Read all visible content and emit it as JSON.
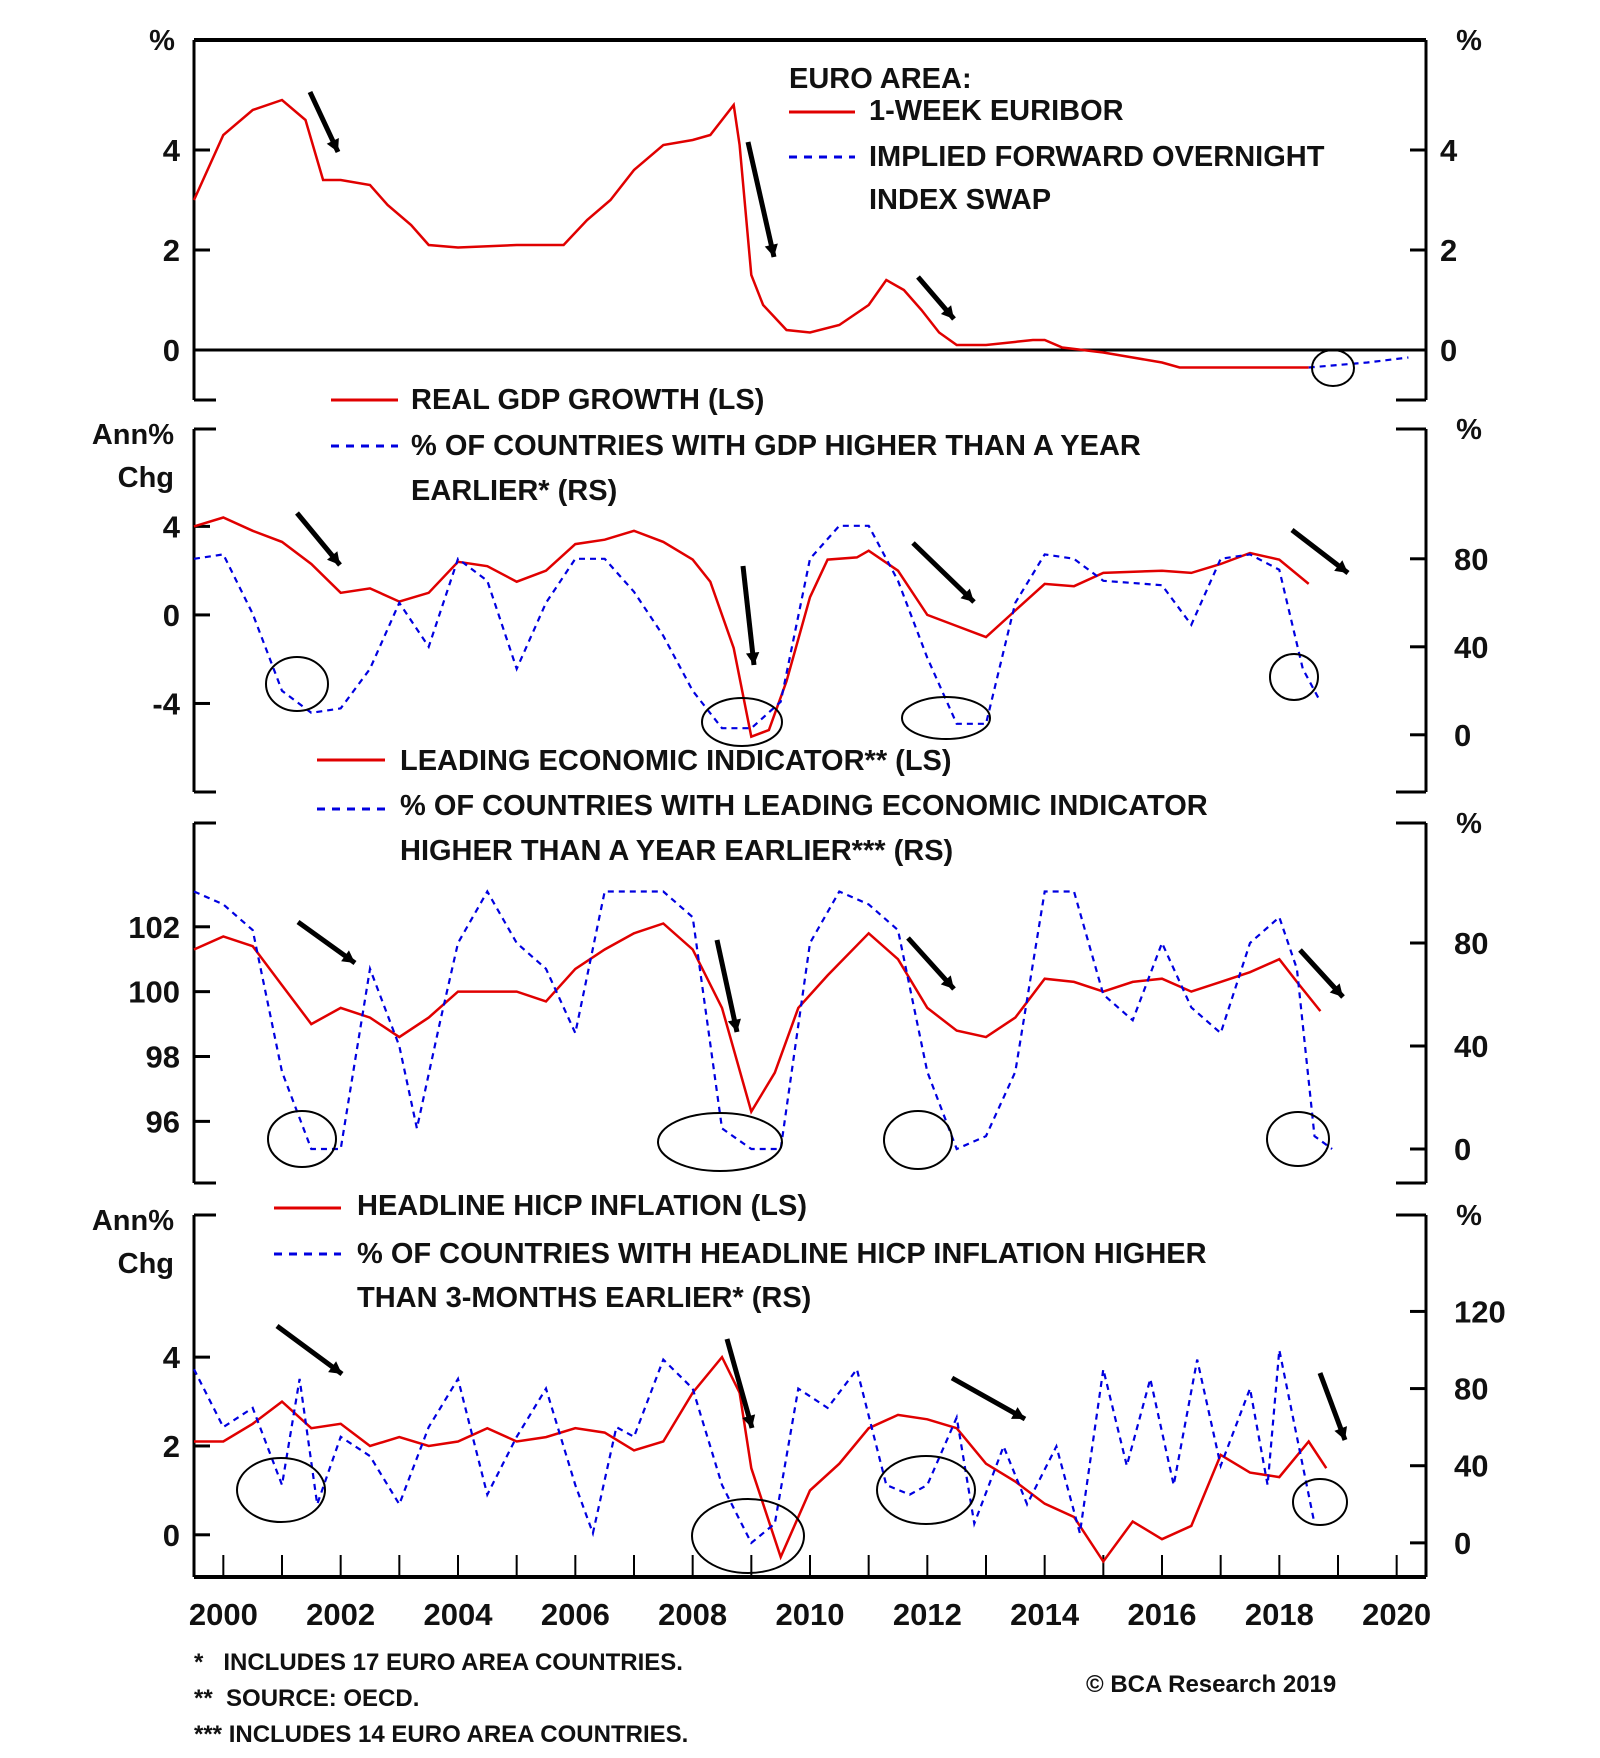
{
  "chart_data": [
    {
      "type": "line",
      "panel": "euribor",
      "legend_title": "EURO AREA:",
      "left_unit": "%",
      "right_unit": "%",
      "ylim": [
        -1,
        6.2
      ],
      "yticks": [
        0,
        2,
        4
      ],
      "grid": false,
      "legend_placement": "top-right",
      "series": [
        {
          "name": "1-WEEK EURIBOR",
          "color": "#e00000",
          "style": "solid",
          "axis": "left",
          "x": [
            1999.5,
            2000.0,
            2000.5,
            2001.0,
            2001.4,
            2001.7,
            2002.0,
            2002.5,
            2002.8,
            2003.2,
            2003.5,
            2004.0,
            2005.0,
            2005.8,
            2006.2,
            2006.6,
            2007.0,
            2007.5,
            2008.0,
            2008.3,
            2008.7,
            2008.8,
            2009.0,
            2009.2,
            2009.6,
            2010.0,
            2010.5,
            2011.0,
            2011.3,
            2011.6,
            2011.9,
            2012.2,
            2012.5,
            2013.0,
            2013.8,
            2014.0,
            2014.3,
            2015.0,
            2015.5,
            2016.0,
            2016.3,
            2018.5
          ],
          "y": [
            3.0,
            4.3,
            4.8,
            5.0,
            4.6,
            3.4,
            3.4,
            3.3,
            2.9,
            2.5,
            2.1,
            2.05,
            2.1,
            2.1,
            2.6,
            3.0,
            3.6,
            4.1,
            4.2,
            4.3,
            4.9,
            4.1,
            1.5,
            0.9,
            0.4,
            0.35,
            0.5,
            0.9,
            1.4,
            1.2,
            0.8,
            0.35,
            0.1,
            0.1,
            0.2,
            0.2,
            0.05,
            -0.05,
            -0.15,
            -0.25,
            -0.35,
            -0.35
          ]
        },
        {
          "name": "IMPLIED FORWARD OVERNIGHT INDEX SWAP",
          "name_lines": [
            "IMPLIED FORWARD OVERNIGHT",
            "INDEX SWAP"
          ],
          "color": "#0000e0",
          "style": "dashed",
          "axis": "left",
          "x": [
            2018.5,
            2019.0,
            2019.5,
            2020.2
          ],
          "y": [
            -0.35,
            -0.3,
            -0.25,
            -0.15
          ]
        }
      ]
    },
    {
      "type": "line",
      "panel": "gdp",
      "left_unit_lines": [
        "Ann%",
        "Chg"
      ],
      "right_unit": "%",
      "ylim": [
        -8,
        8.4
      ],
      "yticks": [
        -4,
        0,
        4
      ],
      "ylim_right": [
        -26,
        139
      ],
      "yticks_right": [
        0,
        40,
        80
      ],
      "series": [
        {
          "name": "REAL GDP GROWTH (LS)",
          "color": "#e00000",
          "style": "solid",
          "axis": "left",
          "x": [
            1999.5,
            2000,
            2000.5,
            2001,
            2001.5,
            2002,
            2002.5,
            2003,
            2003.5,
            2004,
            2004.5,
            2005,
            2005.5,
            2006,
            2006.5,
            2007,
            2007.5,
            2008,
            2008.3,
            2008.7,
            2009,
            2009.3,
            2009.6,
            2010,
            2010.3,
            2010.8,
            2011,
            2011.5,
            2012,
            2012.5,
            2013,
            2013.5,
            2014,
            2014.5,
            2015,
            2016,
            2016.5,
            2017,
            2017.5,
            2018,
            2018.5
          ],
          "y": [
            4.0,
            4.4,
            3.8,
            3.3,
            2.3,
            1.0,
            1.2,
            0.6,
            1.0,
            2.4,
            2.2,
            1.5,
            2.0,
            3.2,
            3.4,
            3.8,
            3.3,
            2.5,
            1.5,
            -1.5,
            -5.5,
            -5.2,
            -3.0,
            0.8,
            2.5,
            2.6,
            2.9,
            2.0,
            0.0,
            -0.5,
            -1.0,
            0.2,
            1.4,
            1.3,
            1.9,
            2.0,
            1.9,
            2.3,
            2.8,
            2.5,
            1.4
          ]
        },
        {
          "name": "% OF COUNTRIES WITH GDP HIGHER THAN A YEAR EARLIER* (RS)",
          "name_lines": [
            "% OF COUNTRIES WITH GDP HIGHER THAN A YEAR",
            "EARLIER* (RS)"
          ],
          "color": "#0000e0",
          "style": "dashed",
          "axis": "right",
          "x": [
            1999.5,
            2000,
            2000.5,
            2001,
            2001.5,
            2002,
            2002.5,
            2003,
            2003.5,
            2004,
            2004.5,
            2005,
            2005.5,
            2006,
            2006.5,
            2007,
            2007.5,
            2008,
            2008.5,
            2009,
            2009.5,
            2010,
            2010.5,
            2011,
            2011.5,
            2012,
            2012.5,
            2013,
            2013.5,
            2014,
            2014.5,
            2015,
            2016,
            2016.5,
            2017,
            2017.5,
            2018,
            2018.4,
            2018.7
          ],
          "y": [
            80,
            82,
            55,
            20,
            10,
            12,
            30,
            60,
            40,
            80,
            70,
            30,
            60,
            80,
            80,
            65,
            45,
            20,
            3,
            3,
            15,
            80,
            95,
            95,
            70,
            35,
            5,
            5,
            60,
            82,
            80,
            70,
            68,
            50,
            80,
            82,
            75,
            30,
            15
          ]
        }
      ]
    },
    {
      "type": "line",
      "panel": "lei",
      "right_unit": "%",
      "ylim": [
        94.1,
        105.2
      ],
      "yticks": [
        96,
        98,
        100,
        102
      ],
      "ylim_right": [
        -13.2,
        126.6
      ],
      "yticks_right": [
        0,
        40,
        80
      ],
      "series": [
        {
          "name": "LEADING ECONOMIC INDICATOR** (LS)",
          "color": "#e00000",
          "style": "solid",
          "axis": "left",
          "x": [
            1999.5,
            2000,
            2000.5,
            2001,
            2001.5,
            2002,
            2002.5,
            2003,
            2003.5,
            2004,
            2005,
            2005.5,
            2006,
            2006.5,
            2007,
            2007.5,
            2008,
            2008.5,
            2009,
            2009.4,
            2009.8,
            2010.3,
            2011,
            2011.5,
            2012,
            2012.5,
            2013,
            2013.5,
            2014,
            2014.5,
            2015,
            2015.5,
            2016,
            2016.5,
            2017,
            2017.5,
            2018,
            2018.3,
            2018.7
          ],
          "y": [
            101.3,
            101.7,
            101.4,
            100.2,
            99.0,
            99.5,
            99.2,
            98.6,
            99.2,
            100.0,
            100.0,
            99.7,
            100.7,
            101.3,
            101.8,
            102.1,
            101.3,
            99.5,
            96.3,
            97.5,
            99.5,
            100.5,
            101.8,
            101.0,
            99.5,
            98.8,
            98.6,
            99.2,
            100.4,
            100.3,
            100.0,
            100.3,
            100.4,
            100.0,
            100.3,
            100.6,
            101.0,
            100.3,
            99.4
          ]
        },
        {
          "name": "% OF COUNTRIES WITH LEADING ECONOMIC INDICATOR HIGHER THAN A YEAR EARLIER*** (RS)",
          "name_lines": [
            "% OF COUNTRIES WITH LEADING ECONOMIC INDICATOR",
            "HIGHER THAN A YEAR EARLIER*** (RS)"
          ],
          "color": "#0000e0",
          "style": "dashed",
          "axis": "right",
          "x": [
            1999.5,
            2000,
            2000.5,
            2001,
            2001.5,
            2002,
            2002.5,
            2003,
            2003.3,
            2003.7,
            2004,
            2004.5,
            2005,
            2005.5,
            2006,
            2006.5,
            2007,
            2007.5,
            2008,
            2008.5,
            2009,
            2009.5,
            2010,
            2010.5,
            2011,
            2011.5,
            2012,
            2012.5,
            2013,
            2013.5,
            2014,
            2014.5,
            2015,
            2015.5,
            2016,
            2016.5,
            2017,
            2017.5,
            2018,
            2018.3,
            2018.6,
            2018.9
          ],
          "y": [
            100,
            95,
            85,
            30,
            0,
            0,
            70,
            40,
            8,
            50,
            80,
            100,
            80,
            70,
            45,
            100,
            100,
            100,
            90,
            8,
            0,
            0,
            80,
            100,
            95,
            85,
            30,
            0,
            5,
            30,
            100,
            100,
            60,
            50,
            80,
            55,
            45,
            80,
            90,
            70,
            5,
            0
          ]
        }
      ]
    },
    {
      "type": "line",
      "panel": "hicp",
      "left_unit_lines": [
        "Ann%",
        "Chg"
      ],
      "right_unit": "%",
      "ylim": [
        -0.95,
        7.2
      ],
      "yticks": [
        0,
        2,
        4
      ],
      "ylim_right": [
        -17.7,
        170
      ],
      "yticks_right": [
        0,
        40,
        80,
        120
      ],
      "xlim": [
        1999.5,
        2020.5
      ],
      "xticks": [
        2000,
        2002,
        2004,
        2006,
        2008,
        2010,
        2012,
        2014,
        2016,
        2018,
        2020
      ],
      "series": [
        {
          "name": "HEADLINE HICP INFLATION (LS)",
          "color": "#e00000",
          "style": "solid",
          "axis": "left",
          "x": [
            1999.5,
            2000,
            2000.5,
            2001,
            2001.5,
            2002,
            2002.5,
            2003,
            2003.5,
            2004,
            2004.5,
            2005,
            2005.5,
            2006,
            2006.5,
            2007,
            2007.5,
            2008,
            2008.5,
            2008.8,
            2009,
            2009.5,
            2010,
            2010.5,
            2011,
            2011.5,
            2012,
            2012.5,
            2013,
            2013.5,
            2014,
            2014.5,
            2015,
            2015.5,
            2016,
            2016.5,
            2017,
            2017.5,
            2018,
            2018.5,
            2018.8
          ],
          "y": [
            2.1,
            2.1,
            2.5,
            3.0,
            2.4,
            2.5,
            2.0,
            2.2,
            2.0,
            2.1,
            2.4,
            2.1,
            2.2,
            2.4,
            2.3,
            1.9,
            2.1,
            3.2,
            4.0,
            3.2,
            1.5,
            -0.5,
            1.0,
            1.6,
            2.4,
            2.7,
            2.6,
            2.4,
            1.6,
            1.2,
            0.7,
            0.4,
            -0.6,
            0.3,
            -0.1,
            0.2,
            1.8,
            1.4,
            1.3,
            2.1,
            1.5
          ]
        },
        {
          "name": "% OF COUNTRIES WITH HEADLINE HICP INFLATION HIGHER THAN 3-MONTHS EARLIER* (RS)",
          "name_lines": [
            "% OF COUNTRIES WITH HEADLINE HICP INFLATION HIGHER",
            "THAN 3-MONTHS EARLIER* (RS)"
          ],
          "color": "#0000e0",
          "style": "dashed",
          "axis": "right",
          "x": [
            1999.5,
            2000,
            2000.5,
            2001,
            2001.3,
            2001.6,
            2002,
            2002.5,
            2003,
            2003.5,
            2004,
            2004.5,
            2005,
            2005.5,
            2006,
            2006.3,
            2006.7,
            2007,
            2007.5,
            2008,
            2008.5,
            2009,
            2009.4,
            2009.8,
            2010.3,
            2010.8,
            2011.3,
            2011.7,
            2012,
            2012.5,
            2012.8,
            2013.3,
            2013.7,
            2014.2,
            2014.6,
            2015,
            2015.4,
            2015.8,
            2016.2,
            2016.6,
            2017,
            2017.5,
            2017.8,
            2018,
            2018.3,
            2018.6
          ],
          "y": [
            90,
            60,
            70,
            30,
            85,
            20,
            55,
            45,
            20,
            60,
            85,
            25,
            55,
            80,
            30,
            5,
            60,
            55,
            95,
            80,
            30,
            0,
            10,
            80,
            70,
            90,
            30,
            25,
            30,
            65,
            10,
            50,
            20,
            50,
            5,
            90,
            40,
            85,
            30,
            95,
            40,
            80,
            30,
            100,
            55,
            10
          ]
        }
      ]
    }
  ],
  "footnotes": [
    "*   INCLUDES 17 EURO AREA COUNTRIES.",
    "**  SOURCE: OECD.",
    "*** INCLUDES 14 EURO AREA COUNTRIES."
  ],
  "copyright": "© BCA Research 2019"
}
